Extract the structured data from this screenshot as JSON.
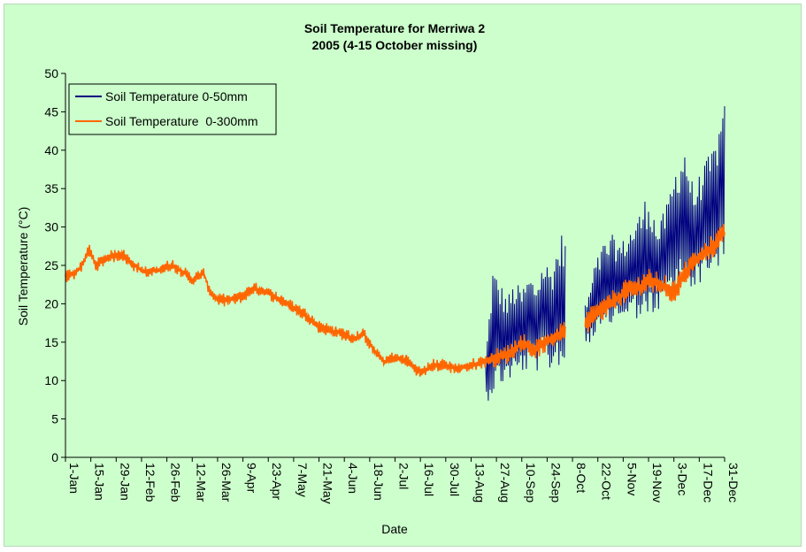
{
  "chart_data": {
    "type": "line",
    "title": "Soil Temperature for Merriwa 2",
    "subtitle": "2005 (4-15 October missing)",
    "xlabel": "Date",
    "ylabel": "Soil Temperature (°C)",
    "ylim": [
      0,
      50
    ],
    "yticks": [
      0,
      5,
      10,
      15,
      20,
      25,
      30,
      35,
      40,
      45,
      50
    ],
    "xlim": [
      "2005-01-01",
      "2005-12-31"
    ],
    "xtick_labels": [
      "1-Jan",
      "15-Jan",
      "29-Jan",
      "12-Feb",
      "26-Feb",
      "12-Mar",
      "26-Mar",
      "9-Apr",
      "23-Apr",
      "7-May",
      "21-May",
      "4-Jun",
      "18-Jun",
      "2-Jul",
      "16-Jul",
      "30-Jul",
      "13-Aug",
      "27-Aug",
      "10-Sep",
      "24-Sep",
      "8-Oct",
      "22-Oct",
      "5-Nov",
      "19-Nov",
      "3-Dec",
      "17-Dec",
      "31-Dec"
    ],
    "xtick_dates": [
      "2005-01-01",
      "2005-01-15",
      "2005-01-29",
      "2005-02-12",
      "2005-02-26",
      "2005-03-12",
      "2005-03-26",
      "2005-04-09",
      "2005-04-23",
      "2005-05-07",
      "2005-05-21",
      "2005-06-04",
      "2005-06-18",
      "2005-07-02",
      "2005-07-16",
      "2005-07-30",
      "2005-08-13",
      "2005-08-27",
      "2005-09-10",
      "2005-09-24",
      "2005-10-08",
      "2005-10-22",
      "2005-11-05",
      "2005-11-19",
      "2005-12-03",
      "2005-12-17",
      "2005-12-31"
    ],
    "missing_period": [
      "2005-10-04",
      "2005-10-15"
    ],
    "grid": false,
    "legend_position": "top-left",
    "series": [
      {
        "name": "Soil Temperature 0-50mm",
        "color": "#000080",
        "date_range": [
          "2005-08-21",
          "2005-12-31"
        ],
        "x": [
          "2005-08-21",
          "2005-08-25",
          "2005-08-29",
          "2005-09-02",
          "2005-09-06",
          "2005-09-10",
          "2005-09-14",
          "2005-09-18",
          "2005-09-22",
          "2005-09-26",
          "2005-09-30",
          "2005-10-03",
          "2005-10-16",
          "2005-10-20",
          "2005-10-25",
          "2005-10-30",
          "2005-11-04",
          "2005-11-09",
          "2005-11-14",
          "2005-11-19",
          "2005-11-24",
          "2005-11-29",
          "2005-12-04",
          "2005-12-09",
          "2005-12-14",
          "2005-12-19",
          "2005-12-24",
          "2005-12-31"
        ],
        "daily_max": [
          13,
          25,
          23,
          21,
          23,
          22,
          24,
          23,
          26,
          25,
          28,
          30,
          20,
          25,
          28,
          29,
          28,
          30,
          32,
          35,
          30,
          33,
          38,
          41,
          35,
          38,
          40,
          46
        ],
        "daily_min": [
          7,
          8,
          9,
          10,
          10,
          11,
          11,
          11,
          12,
          11,
          12,
          11,
          15,
          15,
          16,
          17,
          18,
          18,
          18,
          17,
          19,
          20,
          21,
          22,
          22,
          23,
          24,
          25
        ]
      },
      {
        "name": "Soil Temperature  0-300mm",
        "color": "#ff6600",
        "x": [
          "2005-01-01",
          "2005-01-06",
          "2005-01-10",
          "2005-01-14",
          "2005-01-18",
          "2005-01-24",
          "2005-02-01",
          "2005-02-08",
          "2005-02-15",
          "2005-02-22",
          "2005-03-01",
          "2005-03-08",
          "2005-03-12",
          "2005-03-18",
          "2005-03-22",
          "2005-03-26",
          "2005-04-02",
          "2005-04-09",
          "2005-04-15",
          "2005-04-22",
          "2005-04-30",
          "2005-05-07",
          "2005-05-14",
          "2005-05-21",
          "2005-05-28",
          "2005-06-04",
          "2005-06-09",
          "2005-06-15",
          "2005-06-20",
          "2005-06-26",
          "2005-07-02",
          "2005-07-09",
          "2005-07-16",
          "2005-07-23",
          "2005-07-30",
          "2005-08-06",
          "2005-08-13",
          "2005-08-20",
          "2005-08-27",
          "2005-09-03",
          "2005-09-10",
          "2005-09-17",
          "2005-09-24",
          "2005-10-03",
          "2005-10-16",
          "2005-10-20",
          "2005-10-26",
          "2005-11-01",
          "2005-11-05",
          "2005-11-12",
          "2005-11-19",
          "2005-11-26",
          "2005-12-03",
          "2005-12-08",
          "2005-12-12",
          "2005-12-17",
          "2005-12-22",
          "2005-12-27",
          "2005-12-31"
        ],
        "y": [
          23.5,
          24,
          25,
          27,
          25,
          26,
          26.5,
          25,
          24,
          24.5,
          25,
          24,
          23,
          24,
          21.5,
          20.5,
          20.5,
          21,
          22,
          21.5,
          20.5,
          19.5,
          18.5,
          17,
          16.5,
          16,
          15.5,
          16,
          14,
          12.5,
          13,
          12.5,
          11,
          12,
          12,
          11.5,
          12,
          12.5,
          13,
          13.5,
          15,
          14,
          15,
          16.5,
          17.5,
          18.5,
          19.5,
          20.5,
          21.5,
          22,
          23,
          22.5,
          21.5,
          23.5,
          25,
          26,
          27,
          28,
          30
        ],
        "amplitude": [
          0.8,
          0.8,
          0.8,
          0.8,
          0.8,
          0.8,
          0.8,
          0.8,
          0.8,
          0.8,
          0.8,
          0.8,
          0.8,
          0.8,
          0.8,
          0.8,
          0.8,
          0.8,
          0.8,
          0.8,
          0.8,
          0.8,
          0.8,
          0.8,
          0.8,
          0.8,
          0.8,
          0.8,
          0.8,
          0.8,
          0.8,
          0.8,
          0.8,
          0.8,
          0.8,
          0.8,
          0.8,
          0.8,
          1.2,
          1.2,
          1.2,
          1.2,
          1.2,
          1.2,
          1.5,
          1.5,
          1.5,
          1.5,
          1.5,
          1.5,
          1.5,
          1.5,
          1.5,
          1.5,
          1.5,
          1.5,
          1.5,
          1.5,
          1.5
        ]
      }
    ]
  }
}
